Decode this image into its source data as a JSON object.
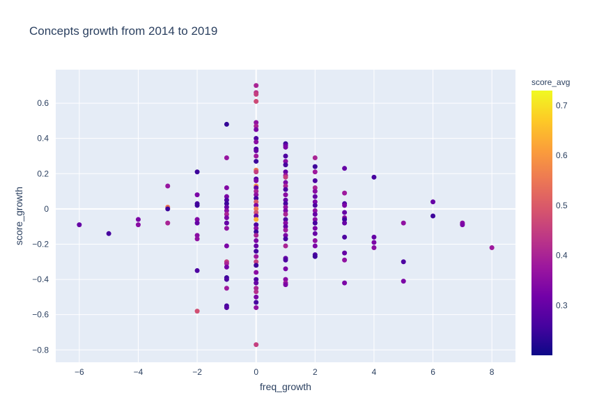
{
  "chart_data": {
    "type": "scatter",
    "title": "Concepts growth from 2014 to 2019",
    "xlabel": "freq_growth",
    "ylabel": "score_growth",
    "xlim": [
      -6.8,
      8.8
    ],
    "ylim": [
      -0.87,
      0.79
    ],
    "x_ticks": [
      -6,
      -4,
      -2,
      0,
      2,
      4,
      6,
      8
    ],
    "x_tick_labels": [
      "−6",
      "−4",
      "−2",
      "0",
      "2",
      "4",
      "6",
      "8"
    ],
    "y_ticks": [
      -0.8,
      -0.6,
      -0.4,
      -0.2,
      0,
      0.2,
      0.4,
      0.6
    ],
    "y_tick_labels": [
      "−0.8",
      "−0.6",
      "−0.4",
      "−0.2",
      "0",
      "0.2",
      "0.4",
      "0.6"
    ],
    "grid": true,
    "background_color": "#e5ecf6",
    "colorbar": {
      "title": "score_avg",
      "range": [
        0.2,
        0.73
      ],
      "ticks": [
        0.3,
        0.4,
        0.5,
        0.6,
        0.7
      ],
      "tick_labels": [
        "0.3",
        "0.4",
        "0.5",
        "0.6",
        "0.7"
      ],
      "colorscale": [
        "#0d0887",
        "#46039f",
        "#7201a8",
        "#9c179e",
        "#bd3786",
        "#d8576b",
        "#ed7953",
        "#fb9f3a",
        "#fdca26",
        "#f0f921"
      ]
    },
    "points": [
      {
        "x": -6,
        "y": -0.09,
        "c": 0.3
      },
      {
        "x": -5,
        "y": -0.14,
        "c": 0.26
      },
      {
        "x": -4,
        "y": -0.06,
        "c": 0.33
      },
      {
        "x": -4,
        "y": -0.09,
        "c": 0.35
      },
      {
        "x": -3,
        "y": 0.13,
        "c": 0.37
      },
      {
        "x": -3,
        "y": 0.01,
        "c": 0.55
      },
      {
        "x": -3,
        "y": 0.0,
        "c": 0.25
      },
      {
        "x": -3,
        "y": -0.08,
        "c": 0.4
      },
      {
        "x": -2,
        "y": 0.21,
        "c": 0.25
      },
      {
        "x": -2,
        "y": 0.08,
        "c": 0.33
      },
      {
        "x": -2,
        "y": 0.03,
        "c": 0.26
      },
      {
        "x": -2,
        "y": 0.02,
        "c": 0.25
      },
      {
        "x": -2,
        "y": -0.06,
        "c": 0.34
      },
      {
        "x": -2,
        "y": -0.08,
        "c": 0.3
      },
      {
        "x": -2,
        "y": -0.15,
        "c": 0.35
      },
      {
        "x": -2,
        "y": -0.17,
        "c": 0.36
      },
      {
        "x": -2,
        "y": -0.35,
        "c": 0.27
      },
      {
        "x": -2,
        "y": -0.58,
        "c": 0.48
      },
      {
        "x": -1,
        "y": 0.48,
        "c": 0.24
      },
      {
        "x": -1,
        "y": 0.29,
        "c": 0.37
      },
      {
        "x": -1,
        "y": 0.12,
        "c": 0.34
      },
      {
        "x": -1,
        "y": 0.07,
        "c": 0.33
      },
      {
        "x": -1,
        "y": 0.05,
        "c": 0.27
      },
      {
        "x": -1,
        "y": 0.03,
        "c": 0.25
      },
      {
        "x": -1,
        "y": 0.01,
        "c": 0.3
      },
      {
        "x": -1,
        "y": -0.01,
        "c": 0.35
      },
      {
        "x": -1,
        "y": -0.03,
        "c": 0.4
      },
      {
        "x": -1,
        "y": -0.05,
        "c": 0.33
      },
      {
        "x": -1,
        "y": -0.08,
        "c": 0.3
      },
      {
        "x": -1,
        "y": -0.11,
        "c": 0.36
      },
      {
        "x": -1,
        "y": -0.21,
        "c": 0.33
      },
      {
        "x": -1,
        "y": -0.3,
        "c": 0.45
      },
      {
        "x": -1,
        "y": -0.31,
        "c": 0.4
      },
      {
        "x": -1,
        "y": -0.33,
        "c": 0.32
      },
      {
        "x": -1,
        "y": -0.39,
        "c": 0.25
      },
      {
        "x": -1,
        "y": -0.4,
        "c": 0.27
      },
      {
        "x": -1,
        "y": -0.45,
        "c": 0.38
      },
      {
        "x": -1,
        "y": -0.55,
        "c": 0.26
      },
      {
        "x": -1,
        "y": -0.56,
        "c": 0.28
      },
      {
        "x": 0,
        "y": 0.7,
        "c": 0.4
      },
      {
        "x": 0,
        "y": 0.66,
        "c": 0.43
      },
      {
        "x": 0,
        "y": 0.65,
        "c": 0.45
      },
      {
        "x": 0,
        "y": 0.61,
        "c": 0.47
      },
      {
        "x": 0,
        "y": 0.49,
        "c": 0.36
      },
      {
        "x": 0,
        "y": 0.47,
        "c": 0.4
      },
      {
        "x": 0,
        "y": 0.45,
        "c": 0.33
      },
      {
        "x": 0,
        "y": 0.4,
        "c": 0.27
      },
      {
        "x": 0,
        "y": 0.38,
        "c": 0.35
      },
      {
        "x": 0,
        "y": 0.34,
        "c": 0.26
      },
      {
        "x": 0,
        "y": 0.33,
        "c": 0.3
      },
      {
        "x": 0,
        "y": 0.3,
        "c": 0.38
      },
      {
        "x": 0,
        "y": 0.27,
        "c": 0.25
      },
      {
        "x": 0,
        "y": 0.22,
        "c": 0.55
      },
      {
        "x": 0,
        "y": 0.21,
        "c": 0.45
      },
      {
        "x": 0,
        "y": 0.17,
        "c": 0.27
      },
      {
        "x": 0,
        "y": 0.16,
        "c": 0.33
      },
      {
        "x": 0,
        "y": 0.13,
        "c": 0.58
      },
      {
        "x": 0,
        "y": 0.12,
        "c": 0.3
      },
      {
        "x": 0,
        "y": 0.1,
        "c": 0.4
      },
      {
        "x": 0,
        "y": 0.08,
        "c": 0.36
      },
      {
        "x": 0,
        "y": 0.06,
        "c": 0.26
      },
      {
        "x": 0,
        "y": 0.04,
        "c": 0.5
      },
      {
        "x": 0,
        "y": 0.02,
        "c": 0.33
      },
      {
        "x": 0,
        "y": 0.0,
        "c": 0.55
      },
      {
        "x": 0,
        "y": -0.02,
        "c": 0.48
      },
      {
        "x": 0,
        "y": -0.04,
        "c": 0.3
      },
      {
        "x": 0,
        "y": -0.06,
        "c": 0.63
      },
      {
        "x": 0,
        "y": -0.09,
        "c": 0.27
      },
      {
        "x": 0,
        "y": -0.11,
        "c": 0.35
      },
      {
        "x": 0,
        "y": -0.13,
        "c": 0.25
      },
      {
        "x": 0,
        "y": -0.15,
        "c": 0.4
      },
      {
        "x": 0,
        "y": -0.18,
        "c": 0.33
      },
      {
        "x": 0,
        "y": -0.21,
        "c": 0.3
      },
      {
        "x": 0,
        "y": -0.24,
        "c": 0.26
      },
      {
        "x": 0,
        "y": -0.27,
        "c": 0.38
      },
      {
        "x": 0,
        "y": -0.3,
        "c": 0.45
      },
      {
        "x": 0,
        "y": -0.32,
        "c": 0.25
      },
      {
        "x": 0,
        "y": -0.36,
        "c": 0.35
      },
      {
        "x": 0,
        "y": -0.4,
        "c": 0.27
      },
      {
        "x": 0,
        "y": -0.42,
        "c": 0.3
      },
      {
        "x": 0,
        "y": -0.45,
        "c": 0.4
      },
      {
        "x": 0,
        "y": -0.47,
        "c": 0.42
      },
      {
        "x": 0,
        "y": -0.5,
        "c": 0.33
      },
      {
        "x": 0,
        "y": -0.53,
        "c": 0.26
      },
      {
        "x": 0,
        "y": -0.56,
        "c": 0.36
      },
      {
        "x": 0,
        "y": -0.77,
        "c": 0.45
      },
      {
        "x": 1,
        "y": 0.37,
        "c": 0.25
      },
      {
        "x": 1,
        "y": 0.36,
        "c": 0.3
      },
      {
        "x": 1,
        "y": 0.35,
        "c": 0.33
      },
      {
        "x": 1,
        "y": 0.3,
        "c": 0.27
      },
      {
        "x": 1,
        "y": 0.27,
        "c": 0.35
      },
      {
        "x": 1,
        "y": 0.25,
        "c": 0.26
      },
      {
        "x": 1,
        "y": 0.21,
        "c": 0.3
      },
      {
        "x": 1,
        "y": 0.19,
        "c": 0.38
      },
      {
        "x": 1,
        "y": 0.18,
        "c": 0.45
      },
      {
        "x": 1,
        "y": 0.15,
        "c": 0.33
      },
      {
        "x": 1,
        "y": 0.13,
        "c": 0.4
      },
      {
        "x": 1,
        "y": 0.11,
        "c": 0.27
      },
      {
        "x": 1,
        "y": 0.08,
        "c": 0.35
      },
      {
        "x": 1,
        "y": 0.05,
        "c": 0.3
      },
      {
        "x": 1,
        "y": 0.03,
        "c": 0.26
      },
      {
        "x": 1,
        "y": 0.01,
        "c": 0.36
      },
      {
        "x": 1,
        "y": -0.01,
        "c": 0.33
      },
      {
        "x": 1,
        "y": -0.03,
        "c": 0.4
      },
      {
        "x": 1,
        "y": -0.06,
        "c": 0.27
      },
      {
        "x": 1,
        "y": -0.08,
        "c": 0.35
      },
      {
        "x": 1,
        "y": -0.1,
        "c": 0.3
      },
      {
        "x": 1,
        "y": -0.12,
        "c": 0.38
      },
      {
        "x": 1,
        "y": -0.15,
        "c": 0.33
      },
      {
        "x": 1,
        "y": -0.17,
        "c": 0.26
      },
      {
        "x": 1,
        "y": -0.21,
        "c": 0.4
      },
      {
        "x": 1,
        "y": -0.28,
        "c": 0.3
      },
      {
        "x": 1,
        "y": -0.29,
        "c": 0.27
      },
      {
        "x": 1,
        "y": -0.34,
        "c": 0.33
      },
      {
        "x": 1,
        "y": -0.4,
        "c": 0.35
      },
      {
        "x": 1,
        "y": -0.42,
        "c": 0.38
      },
      {
        "x": 1,
        "y": -0.43,
        "c": 0.33
      },
      {
        "x": 2,
        "y": 0.29,
        "c": 0.4
      },
      {
        "x": 2,
        "y": 0.24,
        "c": 0.25
      },
      {
        "x": 2,
        "y": 0.21,
        "c": 0.38
      },
      {
        "x": 2,
        "y": 0.16,
        "c": 0.27
      },
      {
        "x": 2,
        "y": 0.12,
        "c": 0.4
      },
      {
        "x": 2,
        "y": 0.1,
        "c": 0.35
      },
      {
        "x": 2,
        "y": 0.07,
        "c": 0.3
      },
      {
        "x": 2,
        "y": 0.04,
        "c": 0.33
      },
      {
        "x": 2,
        "y": 0.02,
        "c": 0.27
      },
      {
        "x": 2,
        "y": -0.01,
        "c": 0.36
      },
      {
        "x": 2,
        "y": -0.03,
        "c": 0.3
      },
      {
        "x": 2,
        "y": -0.06,
        "c": 0.35
      },
      {
        "x": 2,
        "y": -0.08,
        "c": 0.26
      },
      {
        "x": 2,
        "y": -0.11,
        "c": 0.33
      },
      {
        "x": 2,
        "y": -0.14,
        "c": 0.3
      },
      {
        "x": 2,
        "y": -0.18,
        "c": 0.36
      },
      {
        "x": 2,
        "y": -0.21,
        "c": 0.33
      },
      {
        "x": 2,
        "y": -0.26,
        "c": 0.27
      },
      {
        "x": 2,
        "y": -0.27,
        "c": 0.25
      },
      {
        "x": 3,
        "y": 0.23,
        "c": 0.3
      },
      {
        "x": 3,
        "y": 0.09,
        "c": 0.38
      },
      {
        "x": 3,
        "y": 0.03,
        "c": 0.27
      },
      {
        "x": 3,
        "y": 0.02,
        "c": 0.33
      },
      {
        "x": 3,
        "y": -0.02,
        "c": 0.3
      },
      {
        "x": 3,
        "y": -0.05,
        "c": 0.36
      },
      {
        "x": 3,
        "y": -0.06,
        "c": 0.25
      },
      {
        "x": 3,
        "y": -0.08,
        "c": 0.3
      },
      {
        "x": 3,
        "y": -0.16,
        "c": 0.27
      },
      {
        "x": 3,
        "y": -0.25,
        "c": 0.3
      },
      {
        "x": 3,
        "y": -0.29,
        "c": 0.36
      },
      {
        "x": 3,
        "y": -0.42,
        "c": 0.33
      },
      {
        "x": 4,
        "y": 0.18,
        "c": 0.26
      },
      {
        "x": 4,
        "y": -0.16,
        "c": 0.3
      },
      {
        "x": 4,
        "y": -0.19,
        "c": 0.33
      },
      {
        "x": 4,
        "y": -0.22,
        "c": 0.35
      },
      {
        "x": 5,
        "y": -0.08,
        "c": 0.36
      },
      {
        "x": 5,
        "y": -0.3,
        "c": 0.27
      },
      {
        "x": 5,
        "y": -0.41,
        "c": 0.33
      },
      {
        "x": 6,
        "y": 0.04,
        "c": 0.3
      },
      {
        "x": 6,
        "y": -0.04,
        "c": 0.25
      },
      {
        "x": 7,
        "y": -0.08,
        "c": 0.35
      },
      {
        "x": 7,
        "y": -0.09,
        "c": 0.33
      },
      {
        "x": 8,
        "y": -0.22,
        "c": 0.38
      }
    ]
  }
}
